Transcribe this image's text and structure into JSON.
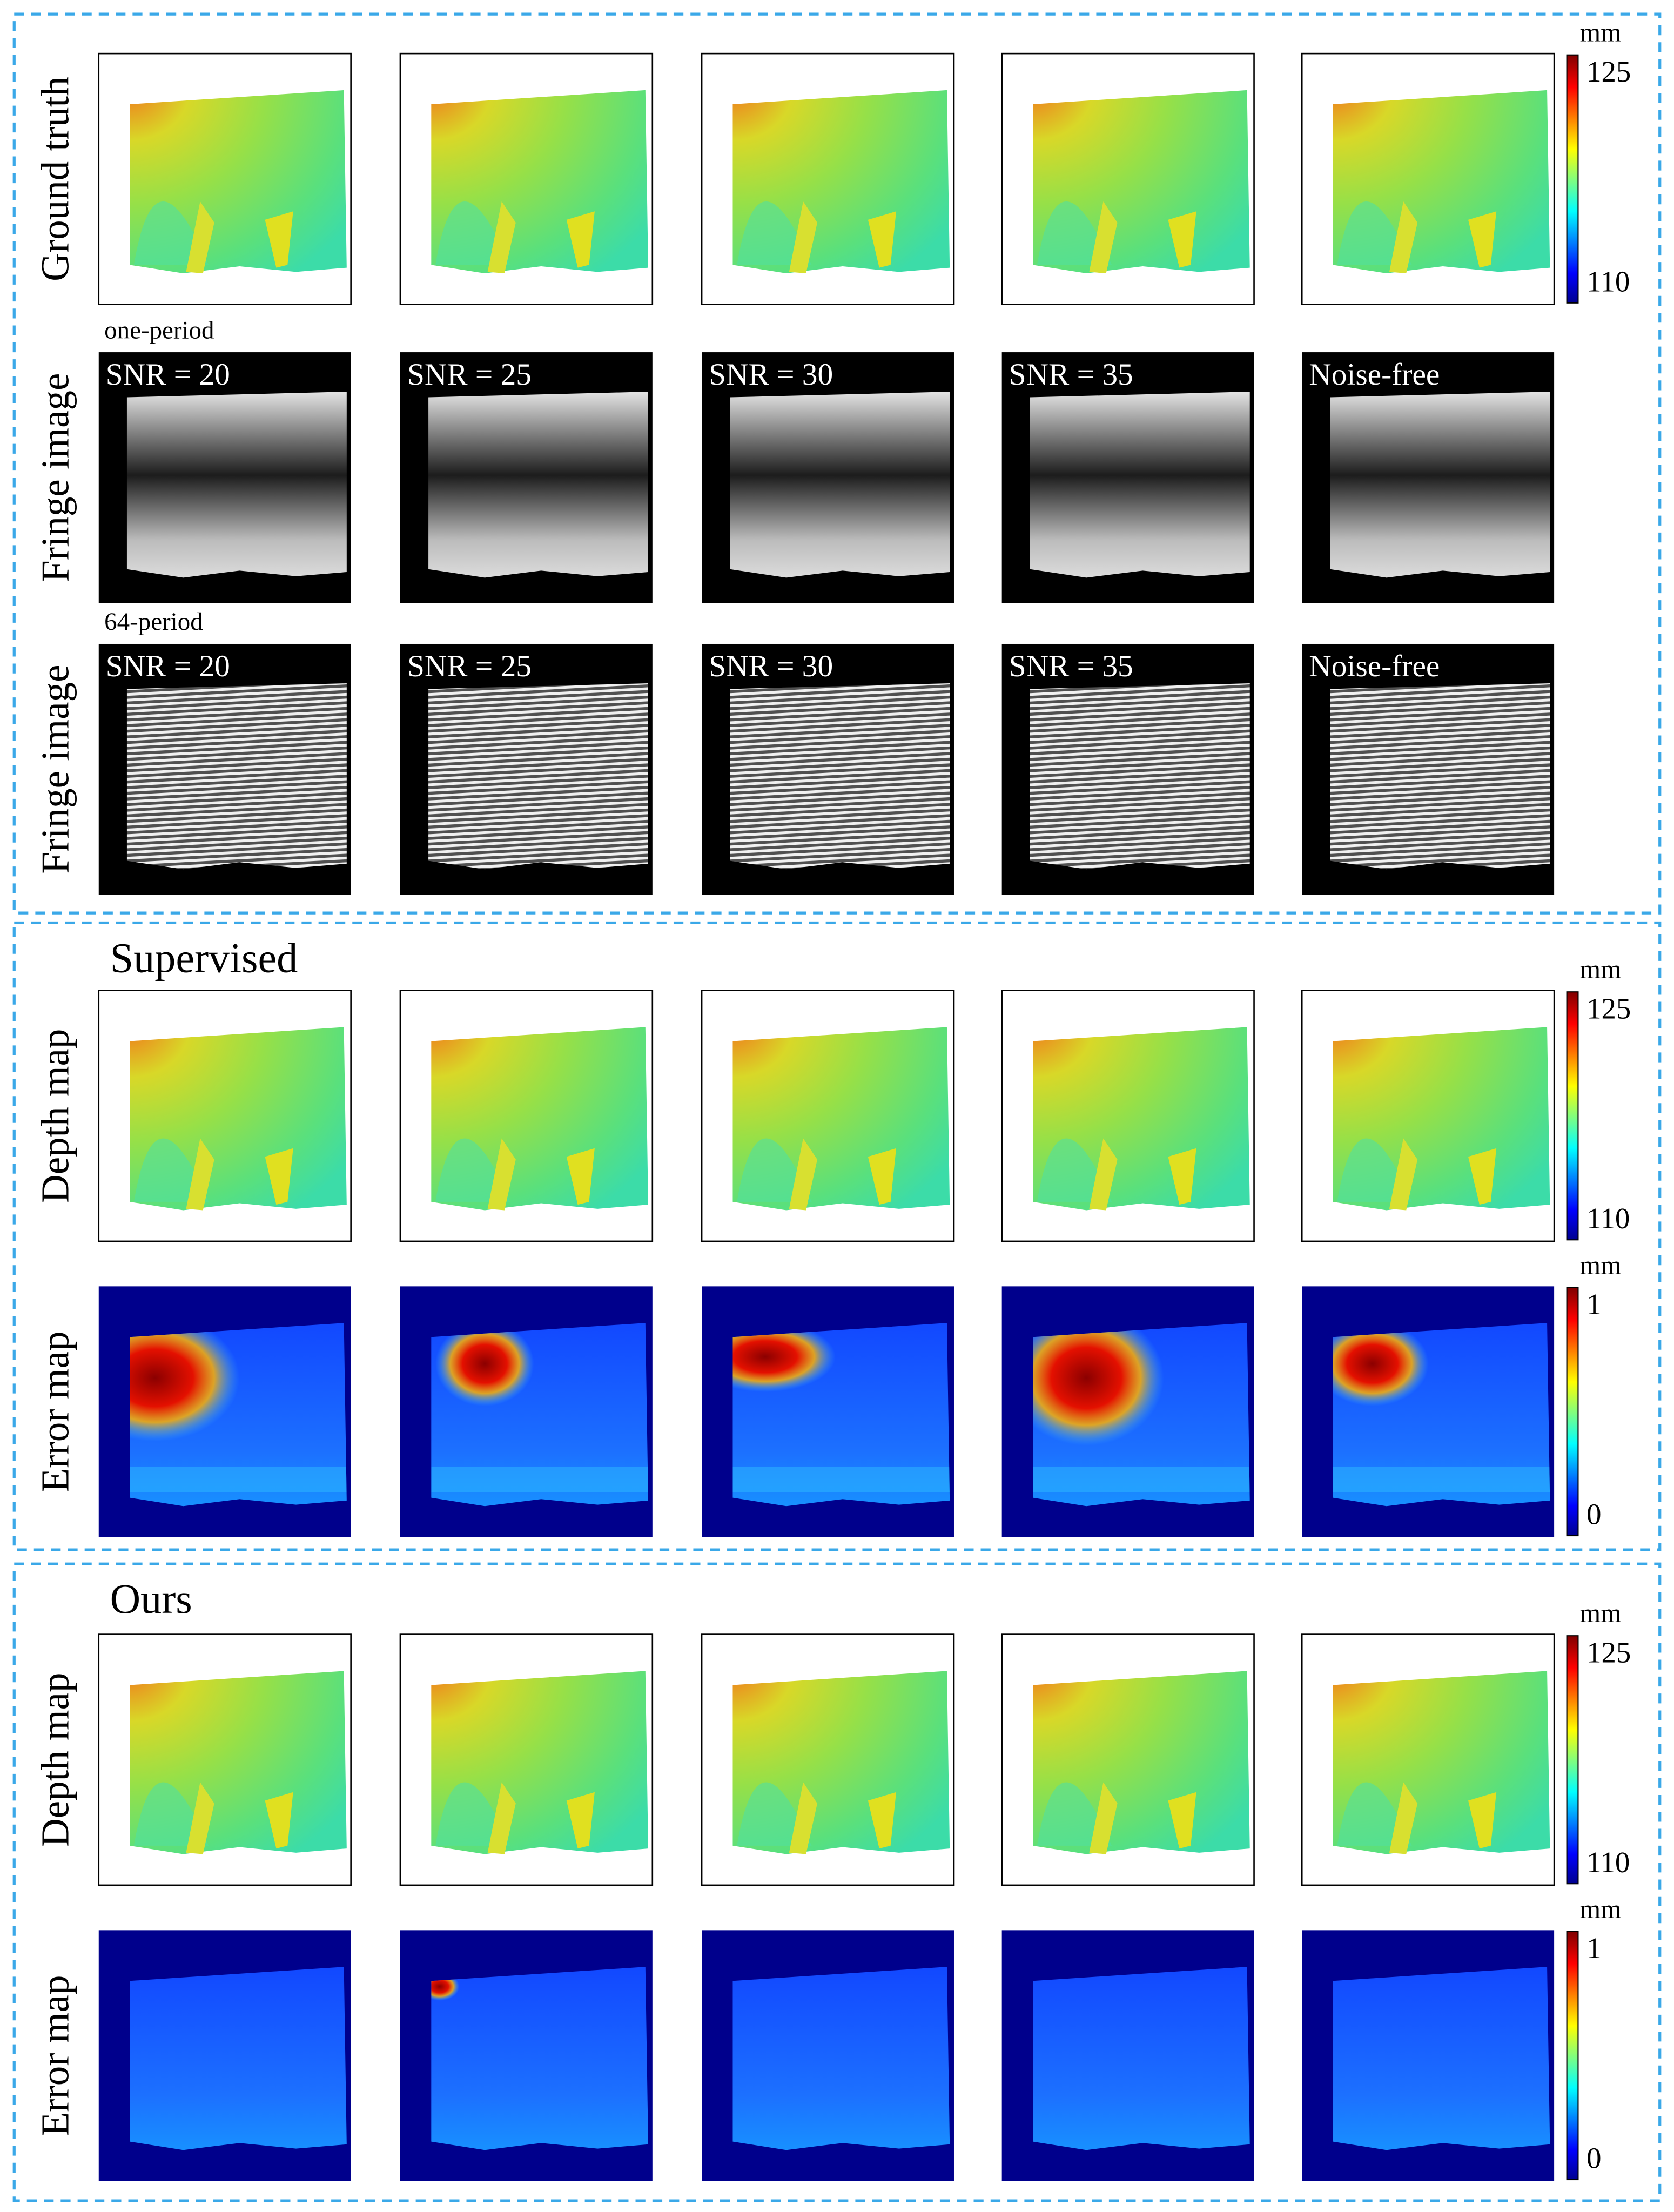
{
  "sections": [
    {
      "rows": [
        {
          "label": "Ground truth",
          "colorbar": {
            "unit": "mm",
            "max": 125,
            "min": 110
          }
        },
        {
          "note": "one-period",
          "label": "Fringe image",
          "captions": [
            "SNR = 20",
            "SNR = 25",
            "SNR = 30",
            "SNR = 35",
            "Noise-free"
          ]
        },
        {
          "note": "64-period",
          "label": "Fringe image",
          "captions": [
            "SNR = 20",
            "SNR = 25",
            "SNR = 30",
            "SNR = 35",
            "Noise-free"
          ]
        }
      ]
    },
    {
      "title": "Supervised",
      "rows": [
        {
          "label": "Depth map",
          "colorbar": {
            "unit": "mm",
            "max": 125,
            "min": 110
          }
        },
        {
          "label": "Error map",
          "colorbar": {
            "unit": "mm",
            "max": 1,
            "min": 0
          }
        }
      ]
    },
    {
      "title": "Ours",
      "rows": [
        {
          "label": "Depth map",
          "colorbar": {
            "unit": "mm",
            "max": 125,
            "min": 110
          }
        },
        {
          "label": "Error map",
          "colorbar": {
            "unit": "mm",
            "max": 1,
            "min": 0
          }
        }
      ]
    }
  ]
}
